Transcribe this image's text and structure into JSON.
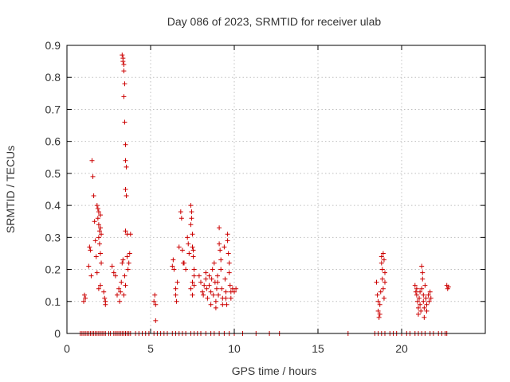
{
  "chart_data": {
    "type": "scatter",
    "title": "Day 086 of 2023, SRMTID for receiver ulab",
    "xlabel": "GPS time / hours",
    "ylabel": "SRMTID / TECUs",
    "xlim": [
      0,
      25
    ],
    "ylim": [
      0,
      0.9
    ],
    "xticks": [
      0,
      5,
      10,
      15,
      20
    ],
    "yticks": [
      0,
      0.1,
      0.2,
      0.3,
      0.4,
      0.5,
      0.6,
      0.7,
      0.8,
      0.9
    ],
    "grid": true,
    "marker": "plus",
    "color": "#cc0000",
    "series": [
      {
        "name": "SRMTID",
        "points": [
          [
            0.8,
            0
          ],
          [
            0.9,
            0
          ],
          [
            1.0,
            0
          ],
          [
            1.1,
            0
          ],
          [
            1.2,
            0
          ],
          [
            1.3,
            0
          ],
          [
            1.4,
            0
          ],
          [
            1.5,
            0
          ],
          [
            1.6,
            0
          ],
          [
            1.7,
            0
          ],
          [
            1.8,
            0
          ],
          [
            1.9,
            0
          ],
          [
            2.0,
            0
          ],
          [
            2.1,
            0
          ],
          [
            2.2,
            0
          ],
          [
            2.3,
            0
          ],
          [
            2.5,
            0
          ],
          [
            2.6,
            0
          ],
          [
            2.8,
            0
          ],
          [
            2.9,
            0
          ],
          [
            3.0,
            0
          ],
          [
            3.1,
            0
          ],
          [
            3.2,
            0
          ],
          [
            3.3,
            0
          ],
          [
            3.4,
            0
          ],
          [
            3.5,
            0
          ],
          [
            3.6,
            0
          ],
          [
            3.7,
            0
          ],
          [
            3.8,
            0
          ],
          [
            4.1,
            0
          ],
          [
            4.3,
            0
          ],
          [
            4.5,
            0
          ],
          [
            4.7,
            0
          ],
          [
            4.9,
            0
          ],
          [
            5.2,
            0
          ],
          [
            5.4,
            0
          ],
          [
            5.6,
            0
          ],
          [
            5.8,
            0
          ],
          [
            6.0,
            0
          ],
          [
            6.3,
            0
          ],
          [
            6.5,
            0
          ],
          [
            6.7,
            0
          ],
          [
            6.9,
            0
          ],
          [
            7.1,
            0
          ],
          [
            7.4,
            0
          ],
          [
            7.6,
            0
          ],
          [
            7.8,
            0
          ],
          [
            8.0,
            0
          ],
          [
            8.3,
            0
          ],
          [
            8.6,
            0
          ],
          [
            8.8,
            0
          ],
          [
            9.1,
            0
          ],
          [
            9.4,
            0
          ],
          [
            9.7,
            0
          ],
          [
            10.0,
            0
          ],
          [
            10.5,
            0
          ],
          [
            11.3,
            0
          ],
          [
            12.1,
            0
          ],
          [
            12.7,
            0
          ],
          [
            16.8,
            0
          ],
          [
            18.4,
            0
          ],
          [
            18.6,
            0
          ],
          [
            18.8,
            0
          ],
          [
            19.0,
            0
          ],
          [
            19.3,
            0
          ],
          [
            19.5,
            0
          ],
          [
            19.7,
            0
          ],
          [
            20.0,
            0
          ],
          [
            20.3,
            0
          ],
          [
            20.5,
            0
          ],
          [
            20.8,
            0
          ],
          [
            21.0,
            0
          ],
          [
            21.2,
            0
          ],
          [
            21.4,
            0
          ],
          [
            21.7,
            0
          ],
          [
            21.9,
            0
          ],
          [
            22.2,
            0
          ],
          [
            22.4,
            0
          ],
          [
            22.6,
            0
          ],
          [
            22.7,
            0
          ],
          [
            1.0,
            0.1
          ],
          [
            1.05,
            0.12
          ],
          [
            1.1,
            0.11
          ],
          [
            1.3,
            0.21
          ],
          [
            1.35,
            0.27
          ],
          [
            1.4,
            0.26
          ],
          [
            1.45,
            0.18
          ],
          [
            1.5,
            0.54
          ],
          [
            1.55,
            0.49
          ],
          [
            1.6,
            0.43
          ],
          [
            1.65,
            0.35
          ],
          [
            1.7,
            0.29
          ],
          [
            1.75,
            0.24
          ],
          [
            1.8,
            0.19
          ],
          [
            1.8,
            0.4
          ],
          [
            1.85,
            0.39
          ],
          [
            1.85,
            0.36
          ],
          [
            1.9,
            0.38
          ],
          [
            1.9,
            0.34
          ],
          [
            1.9,
            0.3
          ],
          [
            1.95,
            0.32
          ],
          [
            1.95,
            0.28
          ],
          [
            2.0,
            0.37
          ],
          [
            2.0,
            0.33
          ],
          [
            2.0,
            0.25
          ],
          [
            2.0,
            0.15
          ],
          [
            2.05,
            0.31
          ],
          [
            2.05,
            0.22
          ],
          [
            1.9,
            0.14
          ],
          [
            2.2,
            0.13
          ],
          [
            2.25,
            0.11
          ],
          [
            2.3,
            0.1
          ],
          [
            2.3,
            0.09
          ],
          [
            2.7,
            0.21
          ],
          [
            2.8,
            0.19
          ],
          [
            2.9,
            0.18
          ],
          [
            3.0,
            0.12
          ],
          [
            3.1,
            0.14
          ],
          [
            3.15,
            0.1
          ],
          [
            3.2,
            0.13
          ],
          [
            3.25,
            0.16
          ],
          [
            3.3,
            0.22
          ],
          [
            3.3,
            0.87
          ],
          [
            3.35,
            0.86
          ],
          [
            3.35,
            0.85
          ],
          [
            3.4,
            0.84
          ],
          [
            3.4,
            0.82
          ],
          [
            3.45,
            0.78
          ],
          [
            3.4,
            0.74
          ],
          [
            3.45,
            0.66
          ],
          [
            3.5,
            0.59
          ],
          [
            3.5,
            0.54
          ],
          [
            3.55,
            0.52
          ],
          [
            3.5,
            0.45
          ],
          [
            3.55,
            0.43
          ],
          [
            3.5,
            0.32
          ],
          [
            3.6,
            0.31
          ],
          [
            3.6,
            0.24
          ],
          [
            3.65,
            0.2
          ],
          [
            3.5,
            0.15
          ],
          [
            3.4,
            0.12
          ],
          [
            3.7,
            0.22
          ],
          [
            3.75,
            0.25
          ],
          [
            3.8,
            0.31
          ],
          [
            3.35,
            0.23
          ],
          [
            3.45,
            0.18
          ],
          [
            5.2,
            0.1
          ],
          [
            5.25,
            0.12
          ],
          [
            5.3,
            0.09
          ],
          [
            5.3,
            0.04
          ],
          [
            6.3,
            0.21
          ],
          [
            6.35,
            0.23
          ],
          [
            6.4,
            0.2
          ],
          [
            6.5,
            0.14
          ],
          [
            6.5,
            0.12
          ],
          [
            6.55,
            0.1
          ],
          [
            6.6,
            0.16
          ],
          [
            6.7,
            0.27
          ],
          [
            6.8,
            0.38
          ],
          [
            6.85,
            0.36
          ],
          [
            6.9,
            0.26
          ],
          [
            6.95,
            0.22
          ],
          [
            7.0,
            0.22
          ],
          [
            7.1,
            0.2
          ],
          [
            7.2,
            0.3
          ],
          [
            7.25,
            0.28
          ],
          [
            7.3,
            0.25
          ],
          [
            7.4,
            0.4
          ],
          [
            7.45,
            0.38
          ],
          [
            7.45,
            0.36
          ],
          [
            7.4,
            0.34
          ],
          [
            7.5,
            0.31
          ],
          [
            7.5,
            0.27
          ],
          [
            7.55,
            0.26
          ],
          [
            7.55,
            0.24
          ],
          [
            7.6,
            0.2
          ],
          [
            7.6,
            0.18
          ],
          [
            7.5,
            0.16
          ],
          [
            7.4,
            0.14
          ],
          [
            7.5,
            0.12
          ],
          [
            7.6,
            0.15
          ],
          [
            7.9,
            0.18
          ],
          [
            8.0,
            0.16
          ],
          [
            8.1,
            0.13
          ],
          [
            8.15,
            0.12
          ],
          [
            8.2,
            0.15
          ],
          [
            8.3,
            0.17
          ],
          [
            8.3,
            0.19
          ],
          [
            8.35,
            0.14
          ],
          [
            8.4,
            0.11
          ],
          [
            8.5,
            0.18
          ],
          [
            8.5,
            0.15
          ],
          [
            8.6,
            0.13
          ],
          [
            8.6,
            0.09
          ],
          [
            8.65,
            0.17
          ],
          [
            8.7,
            0.2
          ],
          [
            8.75,
            0.12
          ],
          [
            8.8,
            0.22
          ],
          [
            8.85,
            0.16
          ],
          [
            8.9,
            0.1
          ],
          [
            8.9,
            0.08
          ],
          [
            8.95,
            0.14
          ],
          [
            9.0,
            0.18
          ],
          [
            9.0,
            0.16
          ],
          [
            9.05,
            0.12
          ],
          [
            9.1,
            0.33
          ],
          [
            9.1,
            0.28
          ],
          [
            9.15,
            0.26
          ],
          [
            9.2,
            0.23
          ],
          [
            9.2,
            0.2
          ],
          [
            9.25,
            0.14
          ],
          [
            9.3,
            0.11
          ],
          [
            9.3,
            0.09
          ],
          [
            9.4,
            0.27
          ],
          [
            9.45,
            0.17
          ],
          [
            9.5,
            0.13
          ],
          [
            9.5,
            0.11
          ],
          [
            9.55,
            0.09
          ],
          [
            9.6,
            0.31
          ],
          [
            9.6,
            0.29
          ],
          [
            9.65,
            0.25
          ],
          [
            9.7,
            0.22
          ],
          [
            9.7,
            0.19
          ],
          [
            9.75,
            0.15
          ],
          [
            9.8,
            0.13
          ],
          [
            9.8,
            0.11
          ],
          [
            9.9,
            0.14
          ],
          [
            10.0,
            0.13
          ],
          [
            10.1,
            0.14
          ],
          [
            18.5,
            0.16
          ],
          [
            18.55,
            0.12
          ],
          [
            18.6,
            0.1
          ],
          [
            18.6,
            0.07
          ],
          [
            18.65,
            0.05
          ],
          [
            18.7,
            0.09
          ],
          [
            18.7,
            0.06
          ],
          [
            18.75,
            0.13
          ],
          [
            18.8,
            0.24
          ],
          [
            18.8,
            0.22
          ],
          [
            18.85,
            0.2
          ],
          [
            18.85,
            0.17
          ],
          [
            18.9,
            0.25
          ],
          [
            18.9,
            0.14
          ],
          [
            18.95,
            0.11
          ],
          [
            18.95,
            0.23
          ],
          [
            19.0,
            0.19
          ],
          [
            19.0,
            0.16
          ],
          [
            20.8,
            0.15
          ],
          [
            20.85,
            0.13
          ],
          [
            20.9,
            0.14
          ],
          [
            20.9,
            0.12
          ],
          [
            20.95,
            0.1
          ],
          [
            21.0,
            0.08
          ],
          [
            21.0,
            0.06
          ],
          [
            21.05,
            0.11
          ],
          [
            21.1,
            0.13
          ],
          [
            21.1,
            0.09
          ],
          [
            21.15,
            0.07
          ],
          [
            21.2,
            0.14
          ],
          [
            21.2,
            0.21
          ],
          [
            21.25,
            0.19
          ],
          [
            21.25,
            0.17
          ],
          [
            21.3,
            0.12
          ],
          [
            21.3,
            0.1
          ],
          [
            21.35,
            0.08
          ],
          [
            21.35,
            0.05
          ],
          [
            21.4,
            0.15
          ],
          [
            21.45,
            0.11
          ],
          [
            21.5,
            0.09
          ],
          [
            21.5,
            0.07
          ],
          [
            21.6,
            0.12
          ],
          [
            21.65,
            0.1
          ],
          [
            21.7,
            0.13
          ],
          [
            21.75,
            0.11
          ],
          [
            22.7,
            0.15
          ],
          [
            22.75,
            0.14
          ],
          [
            22.8,
            0.145
          ]
        ]
      }
    ]
  }
}
